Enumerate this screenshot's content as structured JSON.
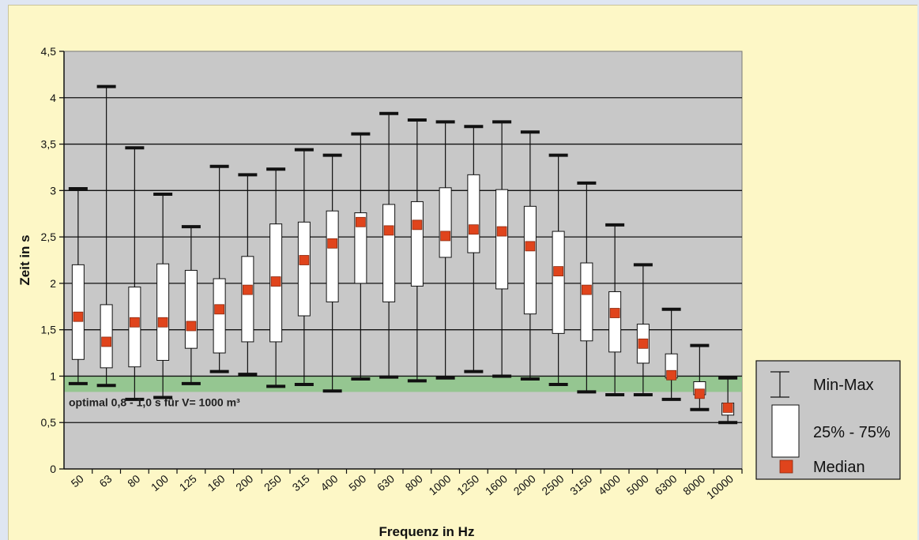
{
  "chart_data": {
    "type": "boxplot",
    "title": "",
    "xlabel": "Frequenz in Hz",
    "ylabel": "Zeit in s",
    "ylim": [
      0,
      4.5
    ],
    "yticks": [
      "0",
      "0,5",
      "1",
      "1,5",
      "2",
      "2,5",
      "3",
      "3,5",
      "4",
      "4,5"
    ],
    "ytick_values": [
      0,
      0.5,
      1,
      1.5,
      2,
      2.5,
      3,
      3.5,
      4,
      4.5
    ],
    "grid": true,
    "categories": [
      "50",
      "63",
      "80",
      "100",
      "125",
      "160",
      "200",
      "250",
      "315",
      "400",
      "500",
      "630",
      "800",
      "1000",
      "1250",
      "1600",
      "2000",
      "2500",
      "3150",
      "4000",
      "5000",
      "6300",
      "8000",
      "10000"
    ],
    "min": [
      0.92,
      0.9,
      0.75,
      0.77,
      0.92,
      1.05,
      1.02,
      0.89,
      0.91,
      0.84,
      0.97,
      0.99,
      0.95,
      0.98,
      1.05,
      1.0,
      0.97,
      0.91,
      0.83,
      0.8,
      0.8,
      0.75,
      0.64,
      0.5
    ],
    "q1": [
      1.18,
      1.09,
      1.1,
      1.17,
      1.3,
      1.25,
      1.37,
      1.37,
      1.65,
      1.8,
      2.0,
      1.8,
      1.97,
      2.28,
      2.33,
      1.94,
      1.67,
      1.46,
      1.38,
      1.26,
      1.14,
      0.98,
      0.8,
      0.58
    ],
    "median": [
      1.64,
      1.37,
      1.58,
      1.58,
      1.54,
      1.72,
      1.93,
      2.02,
      2.25,
      2.43,
      2.66,
      2.57,
      2.63,
      2.51,
      2.58,
      2.56,
      2.4,
      2.13,
      1.93,
      1.68,
      1.35,
      1.01,
      0.81,
      0.66
    ],
    "q3": [
      2.2,
      1.77,
      1.96,
      2.21,
      2.14,
      2.05,
      2.29,
      2.64,
      2.66,
      2.78,
      2.76,
      2.85,
      2.88,
      3.03,
      3.17,
      3.01,
      2.83,
      2.56,
      2.22,
      1.91,
      1.56,
      1.24,
      0.94,
      0.71
    ],
    "max": [
      3.02,
      4.12,
      3.46,
      2.96,
      2.61,
      3.26,
      3.17,
      3.23,
      3.44,
      3.38,
      3.61,
      3.83,
      3.76,
      3.74,
      3.69,
      3.74,
      3.63,
      3.38,
      3.08,
      2.63,
      2.2,
      1.72,
      1.33,
      0.98
    ],
    "optimal_band": {
      "from": 0.83,
      "to": 1.0,
      "label": "optimal 0,8 - 1,0 s für V= 1000 m³"
    },
    "legend": {
      "placement": "right",
      "items": [
        {
          "name": "Min-Max",
          "symbol": "whisker"
        },
        {
          "name": "25% - 75%",
          "symbol": "box"
        },
        {
          "name": "Median",
          "symbol": "marker"
        }
      ]
    },
    "colors": {
      "plot_bg": "#c8c8c8",
      "page_bg": "#fdf7c6",
      "band": "#8cc587",
      "median": "#e0441c",
      "box": "#ffffff",
      "line": "#111111"
    }
  }
}
